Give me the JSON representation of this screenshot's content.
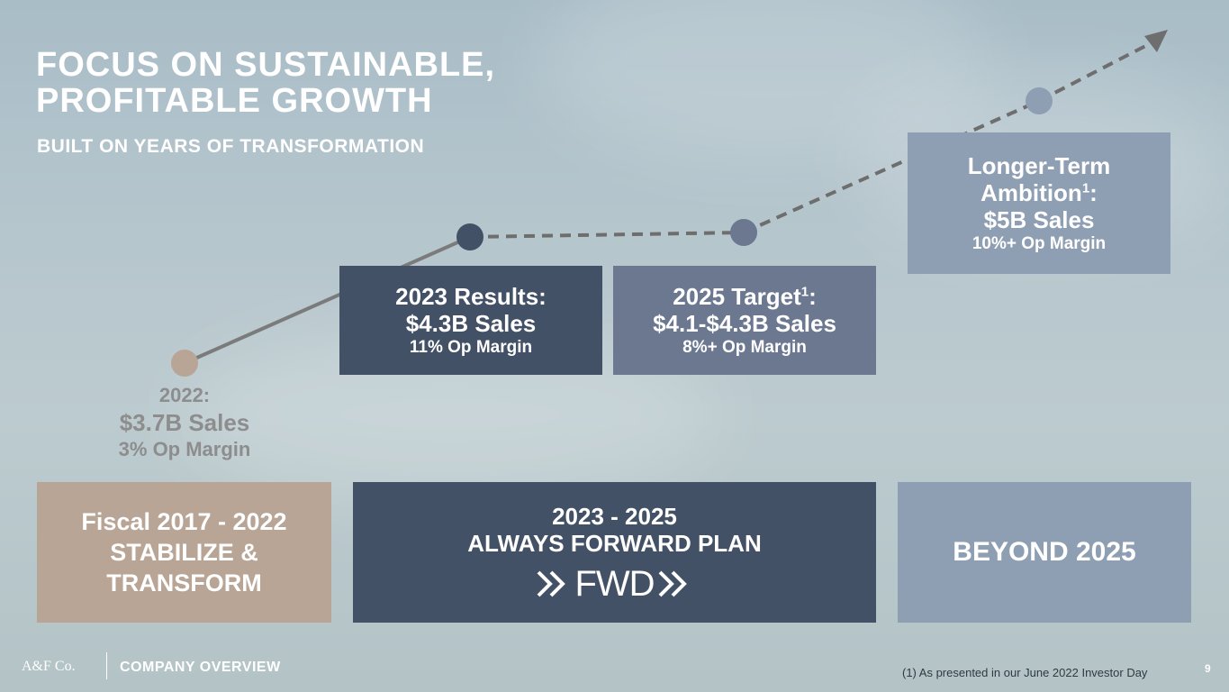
{
  "header": {
    "title_line1": "FOCUS ON SUSTAINABLE,",
    "title_line2": "PROFITABLE GROWTH",
    "subtitle": "BUILT ON YEARS OF TRANSFORMATION"
  },
  "milestones": {
    "m2022": {
      "label": "2022:",
      "sales": "$3.7B Sales",
      "margin": "3% Op Margin"
    },
    "m2023": {
      "label": "2023 Results:",
      "sales": "$4.3B Sales",
      "margin": "11% Op Margin"
    },
    "m2025": {
      "label": "2025 Target",
      "footnote_ref": "1",
      "colon": ":",
      "sales": "$4.1-$4.3B Sales",
      "margin": "8%+ Op Margin"
    },
    "longterm": {
      "label_line1": "Longer-Term",
      "label_line2": "Ambition",
      "footnote_ref": "1",
      "colon": ":",
      "sales": "$5B Sales",
      "margin": "10%+ Op Margin"
    }
  },
  "phases": {
    "p1": {
      "line1": "Fiscal 2017 - 2022",
      "line2": "STABILIZE &",
      "line3": "TRANSFORM"
    },
    "p2": {
      "line1": "2023 - 2025",
      "line2": "ALWAYS FORWARD PLAN",
      "logo": "FWD"
    },
    "p3": {
      "line1": "BEYOND 2025"
    }
  },
  "footer": {
    "logo": "A&F Co.",
    "section": "COMPANY OVERVIEW",
    "footnote": "(1) As presented in our June 2022 Investor Day",
    "page_number": "9"
  },
  "colors": {
    "tan": "#b8a595",
    "navy": "#435166",
    "slate": "#6b7890",
    "lightslate": "#8f9fb3",
    "line": "#7b7b7b"
  }
}
